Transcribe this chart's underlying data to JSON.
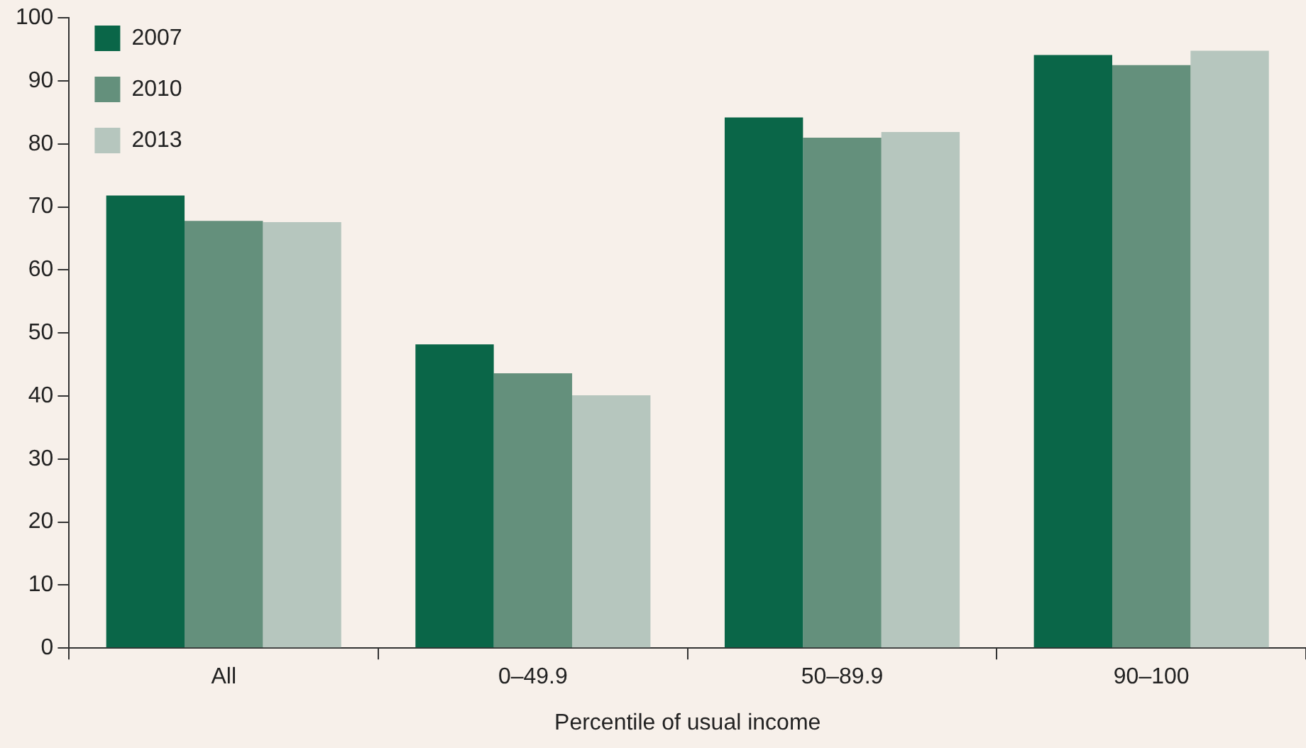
{
  "chart_data": {
    "type": "bar",
    "xlabel": "Percentile of usual income",
    "categories": [
      "All",
      "0–49.9",
      "50–89.9",
      "90–100"
    ],
    "series": [
      {
        "name": "2007",
        "color": "#0a6648",
        "values": [
          71.8,
          48.2,
          84.2,
          94.1
        ]
      },
      {
        "name": "2010",
        "color": "#64907c",
        "values": [
          67.8,
          43.6,
          81.0,
          92.5
        ]
      },
      {
        "name": "2013",
        "color": "#b6c6be",
        "values": [
          67.6,
          40.1,
          81.9,
          94.8
        ]
      }
    ],
    "ylim": [
      0,
      100
    ],
    "yticks": [
      0,
      10,
      20,
      30,
      40,
      50,
      60,
      70,
      80,
      90,
      100
    ],
    "grid": false,
    "legend": "top left"
  }
}
